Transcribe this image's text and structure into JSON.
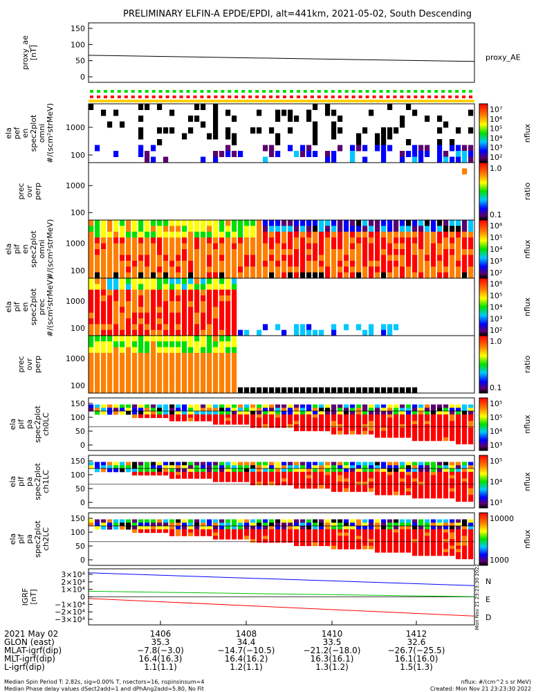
{
  "title": "PRELIMINARY ELFIN-A EPDE/EPDI, alt=441km, 2021-05-02, South Descending",
  "chart_data": [
    {
      "type": "line",
      "id": "proxy_ae",
      "ylabel": "proxy_ae\n[nT]",
      "legend": "proxy_AE",
      "ylim": [
        -5,
        160
      ],
      "yticks": [
        "150",
        "100",
        "50",
        "0"
      ],
      "x": [
        0,
        1
      ],
      "values": [
        70,
        53
      ]
    },
    {
      "type": "heatmap",
      "id": "pef_omni",
      "ylabel": "ela\npef\nen\nspec2plot\nomni\n#/(scm²strMeV)",
      "yticks": [
        "1000",
        "100"
      ],
      "colorbar": {
        "label": "nflux",
        "ticks": [
          "10⁷",
          "10⁶",
          "10⁵",
          "10⁴",
          "10³",
          "10²"
        ]
      }
    },
    {
      "type": "heatmap",
      "id": "pef_ratio",
      "ylabel": "prec\novr\nperp",
      "yticks": [
        "1000",
        "100"
      ],
      "colorbar": {
        "label": "ratio",
        "ticks": [
          "1.0",
          "0.1"
        ]
      }
    },
    {
      "type": "heatmap",
      "id": "pif_omni",
      "ylabel": "ela\npif\nen\nspec2plot\nomni\n#/(scm²strMeV)",
      "yticks": [
        "1000",
        "100"
      ],
      "colorbar": {
        "label": "nflux",
        "ticks": [
          "10⁶",
          "10⁵",
          "10⁴",
          "10³",
          "10²"
        ]
      }
    },
    {
      "type": "heatmap",
      "id": "pif_prec",
      "ylabel": "ela\npif\nen\nspec2plot\nprec\n#/(scm²strMeV)",
      "yticks": [
        "1000",
        "100"
      ],
      "colorbar": {
        "label": "nflux",
        "ticks": [
          "10⁶",
          "10⁵",
          "10⁴",
          "10³",
          "10²"
        ]
      }
    },
    {
      "type": "heatmap",
      "id": "pif_ratio",
      "ylabel": "prec\novr\nperp",
      "yticks": [
        "1000",
        "100"
      ],
      "colorbar": {
        "label": "ratio",
        "ticks": [
          "1.0",
          "0.1"
        ]
      }
    },
    {
      "type": "heatmap",
      "id": "pa_ch0",
      "ylabel": "ela\npif\npa\nspec2plot\nch0LC",
      "yticks": [
        "150",
        "100",
        "50",
        "0"
      ],
      "colorbar": {
        "label": "nflux",
        "ticks": [
          "10⁵",
          "10⁵",
          "10⁴",
          "10³"
        ]
      }
    },
    {
      "type": "heatmap",
      "id": "pa_ch1",
      "ylabel": "ela\npif\npa\nspec2plot\nch1LC",
      "yticks": [
        "150",
        "100",
        "50",
        "0"
      ],
      "colorbar": {
        "label": "nflux",
        "ticks": [
          "10⁵",
          "10⁴",
          "10³"
        ]
      }
    },
    {
      "type": "heatmap",
      "id": "pa_ch2",
      "ylabel": "ela\npif\npa\nspec2plot\nch2LC",
      "yticks": [
        "150",
        "100",
        "50",
        "0"
      ],
      "colorbar": {
        "label": "nflux",
        "ticks": [
          "10000",
          "1000"
        ]
      }
    },
    {
      "type": "line",
      "id": "igrf",
      "ylabel": "IGRF\n[nT]",
      "yticks": [
        "3×10⁴",
        "2×10⁴",
        "1×10⁴",
        "0",
        "−1×10⁴",
        "−2×10⁴",
        "−3×10⁴"
      ],
      "ylim": [
        -35000,
        35000
      ],
      "series": [
        {
          "name": "N",
          "color": "#0000ff",
          "values": [
            30000,
            14000
          ]
        },
        {
          "name": "E",
          "color": "#00c000",
          "values": [
            7000,
            200
          ]
        },
        {
          "name": "D",
          "color": "#ff0000",
          "values": [
            -2000,
            -24000
          ]
        }
      ],
      "side_stamp": "Mon Nov 21 23:23:30 2022"
    }
  ],
  "xaxis": {
    "ticks": [
      "1406",
      "1408",
      "1410",
      "1412"
    ],
    "rows": [
      {
        "label": "2021 May 02",
        "vals": [
          "1406",
          "1408",
          "1410",
          "1412"
        ]
      },
      {
        "label": "GLON (east)",
        "vals": [
          "35.3",
          "34.4",
          "33.5",
          "32.6"
        ]
      },
      {
        "label": "MLAT-igrf(dip)",
        "vals": [
          "−7.8(−3.0)",
          "−14.7(−10.5)",
          "−21.2(−18.0)",
          "−26.7(−25.5)"
        ]
      },
      {
        "label": "MLT-igrf(dip)",
        "vals": [
          "16.4(16.3)",
          "16.4(16.2)",
          "16.3(16.1)",
          "16.1(16.0)"
        ]
      },
      {
        "label": "L-igrf(dip)",
        "vals": [
          "1.1(1.1)",
          "1.2(1.1)",
          "1.3(1.2)",
          "1.5(1.3)"
        ]
      }
    ]
  },
  "footer": {
    "left1": "Median Spin Period T: 2.82s, sig=0.00% T, nsectors=16, nspinsinsum=4",
    "left2": "Median Phase delay values dSect2add=1 and dPhAng2add=5.80, No Fit",
    "right1": "nflux: #/(cm^2 s sr MeV)",
    "right2": "Created: Mon Nov 21 23:23:30 2022"
  },
  "colors": {
    "black": "#000000",
    "blue": "#0000ff",
    "green": "#00c000",
    "red": "#ff0000"
  }
}
